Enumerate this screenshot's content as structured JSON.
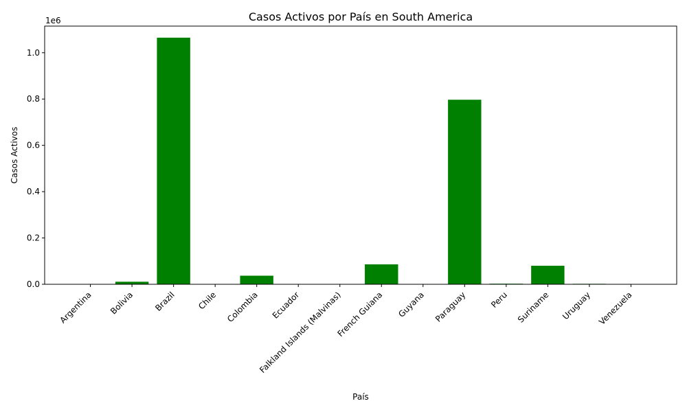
{
  "chart_data": {
    "type": "bar",
    "title": "Casos Activos por País en South America",
    "xlabel": "País",
    "ylabel": "Casos Activos",
    "y_offset_label": "1e6",
    "categories": [
      "Argentina",
      "Bolivia",
      "Brazil",
      "Chile",
      "Colombia",
      "Ecuador",
      "Falkland Islands (Malvinas)",
      "French Guiana",
      "Guyana",
      "Paraguay",
      "Peru",
      "Suriname",
      "Uruguay",
      "Venezuela"
    ],
    "values": [
      0,
      11000,
      1065000,
      0,
      37000,
      0,
      0,
      86000,
      0,
      797000,
      2500,
      80000,
      2000,
      0
    ],
    "ylim": [
      0,
      1115000
    ],
    "yticks": [
      0,
      200000,
      400000,
      600000,
      800000,
      1000000
    ],
    "ytick_labels": [
      "0.0",
      "0.2",
      "0.4",
      "0.6",
      "0.8",
      "1.0"
    ],
    "bar_color": "#008000",
    "grid": false,
    "legend": "none"
  }
}
